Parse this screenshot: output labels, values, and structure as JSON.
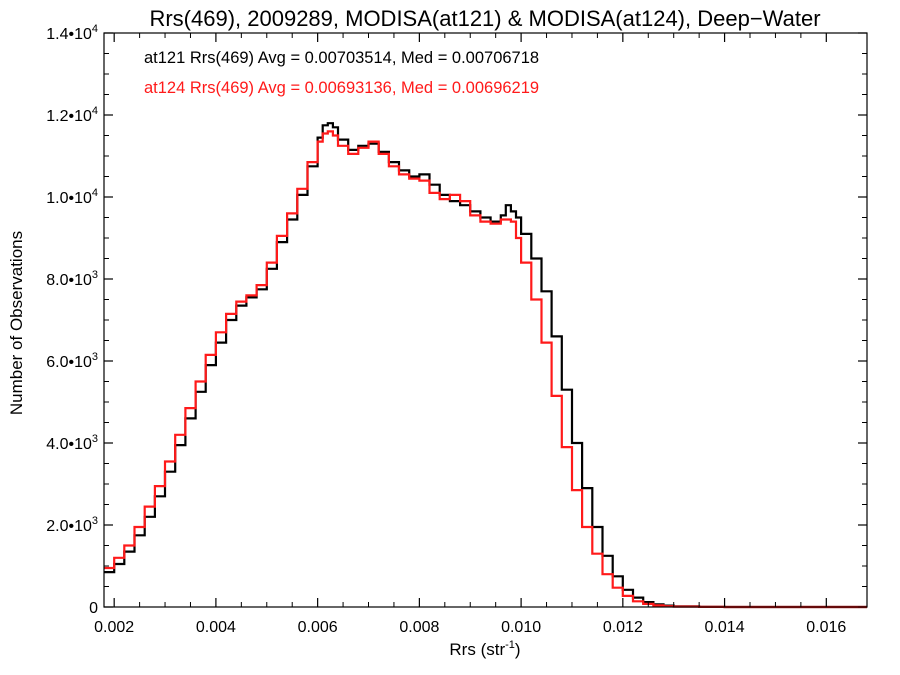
{
  "chart_data": {
    "type": "line",
    "title": "Rrs(469), 2009289, MODISA(at121) & MODISA(at124), Deep−Water",
    "xlabel": "Rrs (str",
    "xlabel_sup": "-1",
    "xlabel_close": ")",
    "ylabel": "Number of Observations",
    "xlim": [
      0.0018,
      0.0168
    ],
    "ylim": [
      0,
      14000
    ],
    "grid": false,
    "x_ticks": [
      {
        "value": 0.002,
        "label": "0.002"
      },
      {
        "value": 0.004,
        "label": "0.004"
      },
      {
        "value": 0.006,
        "label": "0.006"
      },
      {
        "value": 0.008,
        "label": "0.008"
      },
      {
        "value": 0.01,
        "label": "0.010"
      },
      {
        "value": 0.012,
        "label": "0.012"
      },
      {
        "value": 0.014,
        "label": "0.014"
      },
      {
        "value": 0.016,
        "label": "0.016"
      }
    ],
    "y_ticks": [
      {
        "value": 0,
        "mant": "0",
        "exp": ""
      },
      {
        "value": 2000,
        "mant": "2.0•10",
        "exp": "3"
      },
      {
        "value": 4000,
        "mant": "4.0•10",
        "exp": "3"
      },
      {
        "value": 6000,
        "mant": "6.0•10",
        "exp": "3"
      },
      {
        "value": 8000,
        "mant": "8.0•10",
        "exp": "3"
      },
      {
        "value": 10000,
        "mant": "1.0•10",
        "exp": "4"
      },
      {
        "value": 12000,
        "mant": "1.2•10",
        "exp": "4"
      },
      {
        "value": 14000,
        "mant": "1.4•10",
        "exp": "4"
      }
    ],
    "series": [
      {
        "name": "at121",
        "color": "#000000",
        "stat_text": "at121 Rrs(469) Avg = 0.00703514, Med = 0.00706718",
        "points": [
          [
            0.0018,
            850
          ],
          [
            0.002,
            1050
          ],
          [
            0.0022,
            1350
          ],
          [
            0.0024,
            1750
          ],
          [
            0.0026,
            2200
          ],
          [
            0.0028,
            2700
          ],
          [
            0.003,
            3300
          ],
          [
            0.0032,
            3950
          ],
          [
            0.0034,
            4600
          ],
          [
            0.0036,
            5250
          ],
          [
            0.0038,
            5900
          ],
          [
            0.004,
            6450
          ],
          [
            0.0042,
            7000
          ],
          [
            0.0044,
            7350
          ],
          [
            0.0046,
            7550
          ],
          [
            0.0048,
            7750
          ],
          [
            0.005,
            8250
          ],
          [
            0.0052,
            8900
          ],
          [
            0.0054,
            9450
          ],
          [
            0.0056,
            10050
          ],
          [
            0.0058,
            10750
          ],
          [
            0.006,
            11450
          ],
          [
            0.0061,
            11750
          ],
          [
            0.0062,
            11800
          ],
          [
            0.0063,
            11700
          ],
          [
            0.0064,
            11400
          ],
          [
            0.0066,
            11150
          ],
          [
            0.0068,
            11250
          ],
          [
            0.007,
            11300
          ],
          [
            0.0072,
            11100
          ],
          [
            0.0074,
            10850
          ],
          [
            0.0076,
            10650
          ],
          [
            0.0078,
            10500
          ],
          [
            0.008,
            10550
          ],
          [
            0.0082,
            10300
          ],
          [
            0.0084,
            10050
          ],
          [
            0.0086,
            9900
          ],
          [
            0.0088,
            9800
          ],
          [
            0.009,
            9650
          ],
          [
            0.0092,
            9500
          ],
          [
            0.0094,
            9400
          ],
          [
            0.0096,
            9550
          ],
          [
            0.0097,
            9800
          ],
          [
            0.0098,
            9650
          ],
          [
            0.0099,
            9500
          ],
          [
            0.01,
            9100
          ],
          [
            0.0102,
            8500
          ],
          [
            0.0104,
            7700
          ],
          [
            0.0106,
            6600
          ],
          [
            0.0108,
            5300
          ],
          [
            0.011,
            4000
          ],
          [
            0.0112,
            2900
          ],
          [
            0.0114,
            1950
          ],
          [
            0.0116,
            1250
          ],
          [
            0.0118,
            750
          ],
          [
            0.012,
            420
          ],
          [
            0.0122,
            230
          ],
          [
            0.0124,
            120
          ],
          [
            0.0126,
            65
          ],
          [
            0.0128,
            35
          ],
          [
            0.013,
            18
          ],
          [
            0.0135,
            5
          ],
          [
            0.014,
            0
          ],
          [
            0.0168,
            0
          ]
        ]
      },
      {
        "name": "at124",
        "color": "#ff1a1a",
        "stat_text": "at124 Rrs(469) Avg = 0.00693136, Med = 0.00696219",
        "points": [
          [
            0.0018,
            950
          ],
          [
            0.002,
            1200
          ],
          [
            0.0022,
            1500
          ],
          [
            0.0024,
            1950
          ],
          [
            0.0026,
            2450
          ],
          [
            0.0028,
            2950
          ],
          [
            0.003,
            3550
          ],
          [
            0.0032,
            4200
          ],
          [
            0.0034,
            4850
          ],
          [
            0.0036,
            5500
          ],
          [
            0.0038,
            6150
          ],
          [
            0.004,
            6700
          ],
          [
            0.0042,
            7150
          ],
          [
            0.0044,
            7450
          ],
          [
            0.0046,
            7600
          ],
          [
            0.0048,
            7850
          ],
          [
            0.005,
            8400
          ],
          [
            0.0052,
            9050
          ],
          [
            0.0054,
            9600
          ],
          [
            0.0056,
            10200
          ],
          [
            0.0058,
            10850
          ],
          [
            0.006,
            11350
          ],
          [
            0.0061,
            11550
          ],
          [
            0.0062,
            11600
          ],
          [
            0.0063,
            11500
          ],
          [
            0.0064,
            11250
          ],
          [
            0.0066,
            11050
          ],
          [
            0.0068,
            11200
          ],
          [
            0.007,
            11350
          ],
          [
            0.0072,
            11050
          ],
          [
            0.0074,
            10750
          ],
          [
            0.0076,
            10550
          ],
          [
            0.0078,
            10450
          ],
          [
            0.008,
            10400
          ],
          [
            0.0082,
            10100
          ],
          [
            0.0084,
            9950
          ],
          [
            0.0086,
            10050
          ],
          [
            0.0088,
            9900
          ],
          [
            0.009,
            9550
          ],
          [
            0.0092,
            9400
          ],
          [
            0.0094,
            9350
          ],
          [
            0.0096,
            9450
          ],
          [
            0.0098,
            9400
          ],
          [
            0.0099,
            9000
          ],
          [
            0.01,
            8400
          ],
          [
            0.0102,
            7500
          ],
          [
            0.0104,
            6450
          ],
          [
            0.0106,
            5150
          ],
          [
            0.0108,
            3900
          ],
          [
            0.011,
            2850
          ],
          [
            0.0112,
            1950
          ],
          [
            0.0114,
            1300
          ],
          [
            0.0116,
            800
          ],
          [
            0.0118,
            470
          ],
          [
            0.012,
            270
          ],
          [
            0.0122,
            140
          ],
          [
            0.0124,
            75
          ],
          [
            0.0126,
            40
          ],
          [
            0.0128,
            20
          ],
          [
            0.013,
            10
          ],
          [
            0.0135,
            3
          ],
          [
            0.014,
            0
          ],
          [
            0.0168,
            0
          ]
        ]
      }
    ]
  }
}
